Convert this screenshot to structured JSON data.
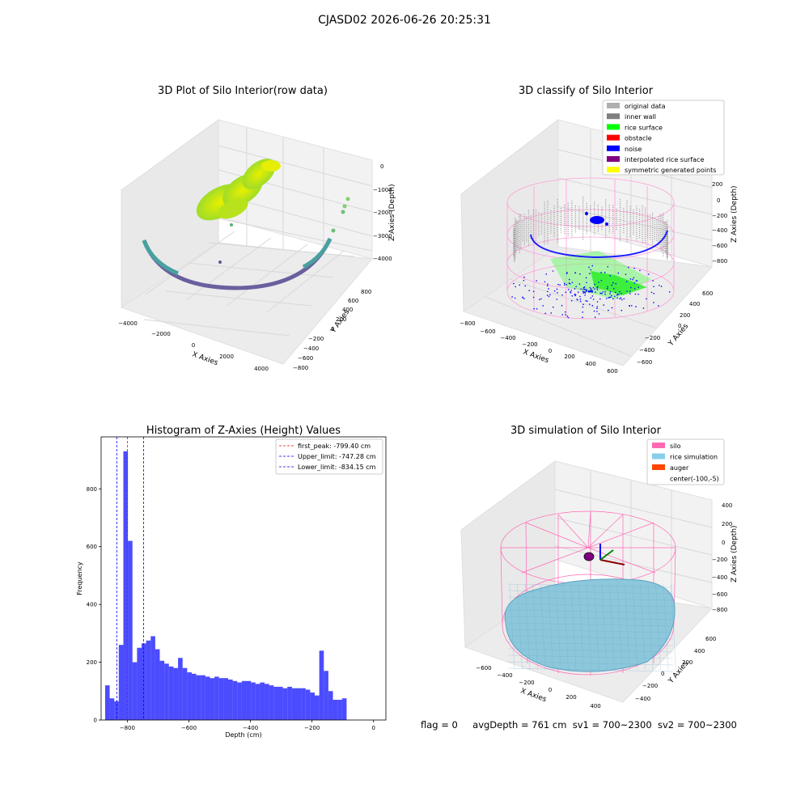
{
  "figure": {
    "suptitle": "CJASD02 2026-06-26 20:25:31",
    "status": {
      "flag": "flag = 0",
      "avg_depth": "avgDepth = 761 cm",
      "sv1": "sv1 = 700~2300",
      "sv2": "sv2 = 700~2300"
    }
  },
  "chart_data": [
    {
      "type": "scatter3d",
      "title": "3D Plot of Silo Interior(row data)",
      "xlabel": "X Axies",
      "ylabel": "Y Axies",
      "zlabel": "Z Axies (Depth)",
      "x_ticks": [
        "−4000",
        "−2000",
        "0",
        "2000",
        "4000"
      ],
      "y_ticks": [
        "−800",
        "−600",
        "−400",
        "−200",
        "0",
        "200",
        "400",
        "600",
        "800"
      ],
      "z_ticks": [
        "0",
        "−1000",
        "−2000",
        "−3000",
        "−4000"
      ],
      "colormap": "viridis"
    },
    {
      "type": "scatter3d",
      "title": "3D classify of Silo Interior",
      "xlabel": "X Axies",
      "ylabel": "Y Axies",
      "zlabel": "Z Axies (Depth)",
      "x_ticks": [
        "−800",
        "−600",
        "−400",
        "−200",
        "0",
        "200",
        "400",
        "600"
      ],
      "y_ticks": [
        "−600",
        "−400",
        "−200",
        "0",
        "200",
        "400",
        "600"
      ],
      "z_ticks": [
        "200",
        "0",
        "−200",
        "−400",
        "−600",
        "−800"
      ],
      "legend_position": "top-right",
      "legend": [
        {
          "label": "original data",
          "color": "#b0b0b0"
        },
        {
          "label": "inner wall",
          "color": "#808080"
        },
        {
          "label": "rice surface",
          "color": "#00ff00"
        },
        {
          "label": "obstacle",
          "color": "#ff0000"
        },
        {
          "label": "noise",
          "color": "#0000ff"
        },
        {
          "label": "interpolated rice surface",
          "color": "#800080"
        },
        {
          "label": "symmetric generated points",
          "color": "#ffff00"
        }
      ]
    },
    {
      "type": "bar",
      "title": "Histogram of Z-Axies (Height) Values",
      "xlabel": "Depth (cm)",
      "ylabel": "Frequency",
      "xlim": [
        -885,
        40
      ],
      "ylim": [
        0,
        980
      ],
      "x_ticks": [
        -800,
        -600,
        -400,
        -200,
        0
      ],
      "x_tick_labels": [
        "−800",
        "−600",
        "−400",
        "−200",
        "0"
      ],
      "y_ticks": [
        0,
        200,
        400,
        600,
        800
      ],
      "bin_start": -872,
      "bin_width": 14.8,
      "values": [
        120,
        75,
        65,
        260,
        930,
        620,
        200,
        250,
        265,
        275,
        290,
        245,
        205,
        195,
        185,
        180,
        215,
        180,
        165,
        160,
        155,
        155,
        150,
        145,
        150,
        145,
        145,
        140,
        135,
        130,
        135,
        135,
        130,
        125,
        130,
        125,
        120,
        115,
        115,
        110,
        115,
        110,
        110,
        110,
        105,
        95,
        85,
        240,
        170,
        100,
        70,
        70,
        75
      ],
      "bar_color": "#0000ff",
      "bar_opacity": 0.7,
      "vlines": [
        {
          "label": "first_peak: -799.40 cm",
          "x": -799.4,
          "color": "#ff0000"
        },
        {
          "label": "Upper_limit: -747.28 cm",
          "x": -747.28,
          "color": "#0000ff"
        },
        {
          "label": "Lower_limit: -834.15 cm",
          "x": -834.15,
          "color": "#0000ff"
        }
      ],
      "legend_position": "top-right"
    },
    {
      "type": "surface3d",
      "title": "3D simulation of Silo Interior",
      "xlabel": "X Axies",
      "ylabel": "Y Axies",
      "zlabel": "Z Axies (Depth)",
      "x_ticks": [
        "−600",
        "−400",
        "−200",
        "0",
        "200",
        "400"
      ],
      "y_ticks": [
        "−400",
        "−200",
        "0",
        "200",
        "400",
        "600"
      ],
      "z_ticks": [
        "400",
        "200",
        "0",
        "−200",
        "−400",
        "−600",
        "−800"
      ],
      "legend_position": "top-right",
      "legend": [
        {
          "label": "silo",
          "color": "#ff69b4"
        },
        {
          "label": "rice simulation",
          "color": "#87ceeb"
        },
        {
          "label": "auger",
          "color": "#ff4500"
        },
        {
          "label": "center(-100,-5)",
          "color": ""
        }
      ]
    }
  ]
}
